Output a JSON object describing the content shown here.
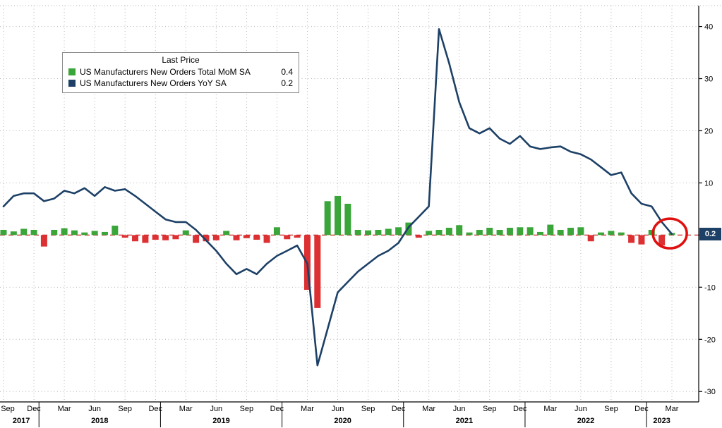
{
  "legend": {
    "title": "Last Price",
    "series": [
      {
        "label": "US Manufacturers New Orders Total MoM SA",
        "value": "0.4",
        "color": "#3aa63a"
      },
      {
        "label": "US Manufacturers New Orders YoY SA",
        "value": "0.2",
        "color": "#1d4066"
      }
    ]
  },
  "axis": {
    "last_price_badge": "0.2"
  },
  "colors": {
    "bar_positive": "#3aa63a",
    "bar_negative": "#dc3032",
    "line": "#1d4066",
    "zero_line": "#cc2222",
    "grid": "#b5b5b5",
    "axis": "#000000",
    "badge_bg": "#1d4066",
    "annotation": "#e01010"
  },
  "chart_data": {
    "type": "bar+line",
    "title": "",
    "legend_position": "top-left",
    "grid": true,
    "ylim": [
      -32,
      44
    ],
    "y_ticks": [
      {
        "v": 40,
        "label": "40"
      },
      {
        "v": 30,
        "label": "30"
      },
      {
        "v": 20,
        "label": "20"
      },
      {
        "v": 10,
        "label": "10"
      },
      {
        "v": 0,
        "label": ""
      },
      {
        "v": -10,
        "label": "-10"
      },
      {
        "v": -20,
        "label": "-20"
      },
      {
        "v": -30,
        "label": "-30"
      }
    ],
    "x": [
      "2017-09",
      "2017-10",
      "2017-11",
      "2017-12",
      "2018-01",
      "2018-02",
      "2018-03",
      "2018-04",
      "2018-05",
      "2018-06",
      "2018-07",
      "2018-08",
      "2018-09",
      "2018-10",
      "2018-11",
      "2018-12",
      "2019-01",
      "2019-02",
      "2019-03",
      "2019-04",
      "2019-05",
      "2019-06",
      "2019-07",
      "2019-08",
      "2019-09",
      "2019-10",
      "2019-11",
      "2019-12",
      "2020-01",
      "2020-02",
      "2020-03",
      "2020-04",
      "2020-05",
      "2020-06",
      "2020-07",
      "2020-08",
      "2020-09",
      "2020-10",
      "2020-11",
      "2020-12",
      "2021-01",
      "2021-02",
      "2021-03",
      "2021-04",
      "2021-05",
      "2021-06",
      "2021-07",
      "2021-08",
      "2021-09",
      "2021-10",
      "2021-11",
      "2021-12",
      "2022-01",
      "2022-02",
      "2022-03",
      "2022-04",
      "2022-05",
      "2022-06",
      "2022-07",
      "2022-08",
      "2022-09",
      "2022-10",
      "2022-11",
      "2022-12",
      "2023-01",
      "2023-02",
      "2023-03"
    ],
    "series": [
      {
        "name": "US Manufacturers New Orders Total MoM SA",
        "type": "bar",
        "last_value": 0.4,
        "color_positive": "#3aa63a",
        "color_negative": "#dc3032",
        "values": [
          1.0,
          0.7,
          1.2,
          1.0,
          -2.2,
          1.0,
          1.3,
          0.9,
          0.5,
          0.8,
          0.6,
          1.8,
          -0.5,
          -1.2,
          -1.5,
          -0.9,
          -1.0,
          -0.8,
          0.9,
          -1.5,
          -1.2,
          -1.0,
          0.8,
          -1.0,
          -0.6,
          -0.9,
          -1.5,
          1.5,
          -0.8,
          -0.5,
          -10.5,
          -14.0,
          6.5,
          7.5,
          6.0,
          1.0,
          0.9,
          1.0,
          1.2,
          1.5,
          2.4,
          -0.5,
          0.8,
          1.0,
          1.4,
          1.9,
          0.5,
          1.0,
          1.4,
          1.0,
          1.4,
          1.5,
          1.5,
          0.6,
          2.0,
          1.0,
          1.4,
          1.5,
          -1.2,
          0.5,
          0.8,
          0.5,
          -1.5,
          -1.8,
          1.0,
          -2.0,
          0.4
        ]
      },
      {
        "name": "US Manufacturers New Orders YoY SA",
        "type": "line",
        "last_value": 0.2,
        "color": "#1d4066",
        "values": [
          5.5,
          7.5,
          8.0,
          8.0,
          6.5,
          7.0,
          8.5,
          8.0,
          9.0,
          7.5,
          9.2,
          8.5,
          8.8,
          7.5,
          6.0,
          4.5,
          3.0,
          2.5,
          2.5,
          1.0,
          -1.0,
          -3.0,
          -5.5,
          -7.5,
          -6.5,
          -7.5,
          -5.5,
          -4.0,
          -3.0,
          -2.0,
          -5.5,
          -25.0,
          -18.0,
          -11.0,
          -9.0,
          -7.0,
          -5.5,
          -4.0,
          -3.0,
          -1.5,
          1.5,
          3.5,
          5.5,
          39.5,
          33.0,
          25.5,
          20.5,
          19.5,
          20.5,
          18.5,
          17.5,
          19.0,
          17.0,
          16.5,
          16.8,
          17.0,
          16.0,
          15.5,
          14.5,
          13.0,
          11.5,
          12.0,
          8.0,
          6.0,
          5.5,
          2.5,
          0.2
        ]
      }
    ],
    "x_ticks": [
      {
        "i": 0,
        "label": "Sep"
      },
      {
        "i": 3,
        "label": "Dec"
      },
      {
        "i": 6,
        "label": "Mar"
      },
      {
        "i": 9,
        "label": "Jun"
      },
      {
        "i": 12,
        "label": "Sep"
      },
      {
        "i": 15,
        "label": "Dec"
      },
      {
        "i": 18,
        "label": "Mar"
      },
      {
        "i": 21,
        "label": "Jun"
      },
      {
        "i": 24,
        "label": "Sep"
      },
      {
        "i": 27,
        "label": "Dec"
      },
      {
        "i": 30,
        "label": "Mar"
      },
      {
        "i": 33,
        "label": "Jun"
      },
      {
        "i": 36,
        "label": "Sep"
      },
      {
        "i": 39,
        "label": "Dec"
      },
      {
        "i": 42,
        "label": "Mar"
      },
      {
        "i": 45,
        "label": "Jun"
      },
      {
        "i": 48,
        "label": "Sep"
      },
      {
        "i": 51,
        "label": "Dec"
      },
      {
        "i": 54,
        "label": "Mar"
      },
      {
        "i": 57,
        "label": "Jun"
      },
      {
        "i": 60,
        "label": "Sep"
      },
      {
        "i": 63,
        "label": "Dec"
      },
      {
        "i": 66,
        "label": "Mar"
      }
    ],
    "year_labels": [
      {
        "label": "2017",
        "start": 0,
        "end": 3.5
      },
      {
        "label": "2018",
        "start": 3.5,
        "end": 15.5
      },
      {
        "label": "2019",
        "start": 15.5,
        "end": 27.5
      },
      {
        "label": "2020",
        "start": 27.5,
        "end": 39.5
      },
      {
        "label": "2021",
        "start": 39.5,
        "end": 51.5
      },
      {
        "label": "2022",
        "start": 51.5,
        "end": 63.5
      },
      {
        "label": "2023",
        "start": 63.5,
        "end": 66.5
      }
    ],
    "zero_line": {
      "v": 0,
      "style": "dashed",
      "color": "#cc2222"
    },
    "annotation_circle": {
      "x_index": 65.8,
      "y": 0.3,
      "rx": 24,
      "ry": 21,
      "color": "#e01010"
    }
  }
}
